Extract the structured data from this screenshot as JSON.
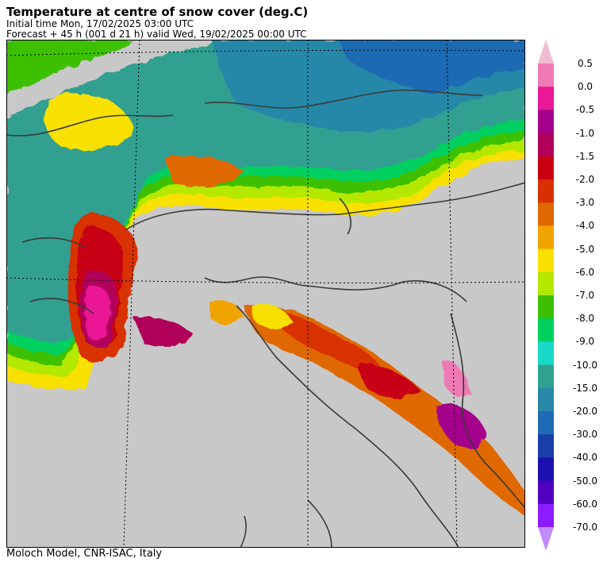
{
  "header": {
    "title": "Temperature at centre of snow cover (deg.C)",
    "initial_time": "Initial time  Mon, 17/02/2025  03:00 UTC",
    "forecast": "Forecast  +  45 h  (001 d 21 h)  valid Wed, 19/02/2025 00:00 UTC"
  },
  "footer": {
    "credit": "Moloch Model, CNR-ISAC, Italy"
  },
  "colors": {
    "background_land": "#c8c8c8",
    "frame": "#000000",
    "coastline": "#3a3a3a"
  },
  "legend": {
    "extend_top_color": "#f0bcd2",
    "extend_bottom_color": "#c28aff",
    "bins": [
      {
        "color": "#ee7ab4"
      },
      {
        "color": "#ea1896"
      },
      {
        "color": "#a4008c"
      },
      {
        "color": "#b0005a"
      },
      {
        "color": "#c80012"
      },
      {
        "color": "#d83000"
      },
      {
        "color": "#e06800"
      },
      {
        "color": "#f0a400"
      },
      {
        "color": "#f8e000"
      },
      {
        "color": "#b4e800"
      },
      {
        "color": "#3cc000"
      },
      {
        "color": "#00d060"
      },
      {
        "color": "#18d8c8"
      },
      {
        "color": "#30a090"
      },
      {
        "color": "#2888a8"
      },
      {
        "color": "#1e6ab4"
      },
      {
        "color": "#1a3ea8"
      },
      {
        "color": "#1a10b0"
      },
      {
        "color": "#5000c0"
      },
      {
        "color": "#8c1cff"
      }
    ],
    "labels": [
      "0.5",
      "0.0",
      "-0.5",
      "-1.0",
      "-1.5",
      "-2.0",
      "-3.0",
      "-4.0",
      "-5.0",
      "-6.0",
      "-7.0",
      "-8.0",
      "-9.0",
      "-10.0",
      "-15.0",
      "-20.0",
      "-30.0",
      "-40.0",
      "-50.0",
      "-60.0",
      "-70.0"
    ]
  }
}
